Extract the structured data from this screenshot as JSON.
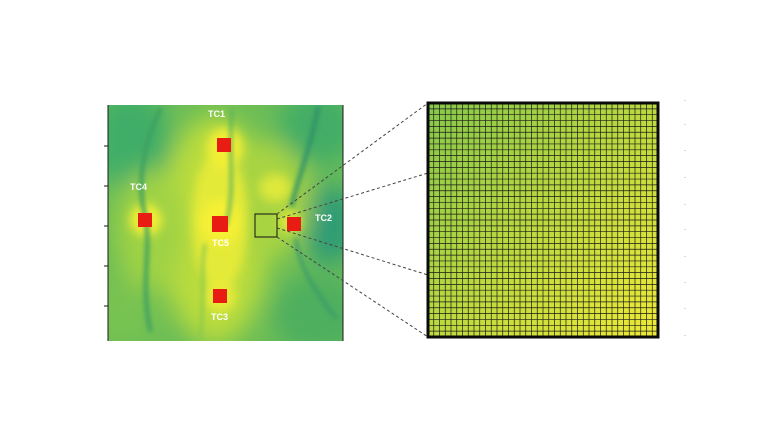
{
  "figure": {
    "labels": {
      "tc1": "TC1",
      "tc2": "TC2",
      "tc3": "TC3",
      "tc4": "TC4",
      "tc5": "TC5"
    },
    "colors": {
      "heatmap_low": "#1a9a6e",
      "heatmap_mid": "#8fce4a",
      "heatmap_high": "#f2ef35",
      "marker": "#e81c12",
      "grid_line": "#1a1a1a"
    },
    "zoom_grid": {
      "cells_per_side": 40
    }
  }
}
